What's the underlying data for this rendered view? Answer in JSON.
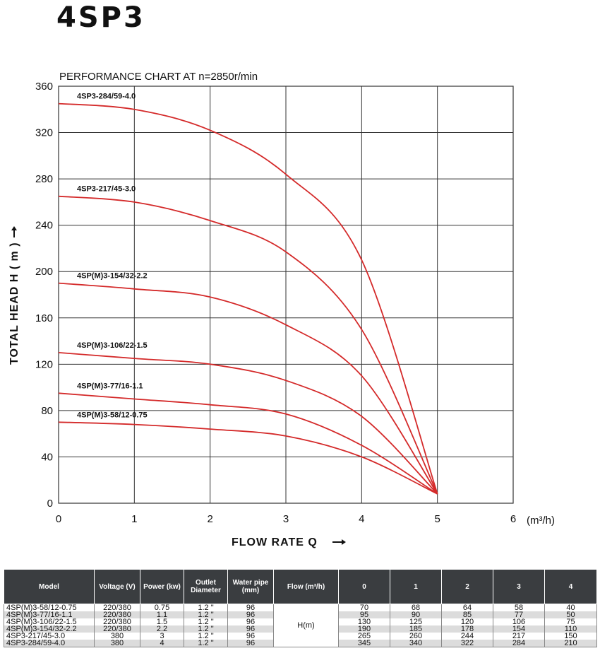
{
  "page_title": "4SP3",
  "chart_data": {
    "type": "line",
    "title": "PERFORMANCE CHART AT  n=2850r/min",
    "xlabel": "FLOW RATE Q",
    "ylabel": "TOTAL HEAD  H ( m )",
    "x_unit": "(m³/h)",
    "xlim": [
      0,
      6
    ],
    "ylim": [
      0,
      360
    ],
    "xticks": [
      0,
      1,
      2,
      3,
      4,
      5,
      6
    ],
    "yticks": [
      0,
      40,
      80,
      120,
      160,
      200,
      240,
      280,
      320,
      360
    ],
    "grid": true,
    "color": "#d42a2a",
    "series": [
      {
        "name": "4SP3-284/59-4.0",
        "x": [
          0,
          1,
          2,
          3,
          4,
          5
        ],
        "y": [
          345,
          340,
          322,
          284,
          210,
          8
        ]
      },
      {
        "name": "4SP3-217/45-3.0",
        "x": [
          0,
          1,
          2,
          3,
          4,
          5
        ],
        "y": [
          265,
          260,
          244,
          217,
          150,
          8
        ]
      },
      {
        "name": "4SP(M)3-154/32-2.2",
        "x": [
          0,
          1,
          2,
          3,
          4,
          5
        ],
        "y": [
          190,
          185,
          178,
          154,
          110,
          8
        ]
      },
      {
        "name": "4SP(M)3-106/22-1.5",
        "x": [
          0,
          1,
          2,
          3,
          4,
          5
        ],
        "y": [
          130,
          125,
          120,
          106,
          75,
          8
        ]
      },
      {
        "name": "4SP(M)3-77/16-1.1",
        "x": [
          0,
          1,
          2,
          3,
          4,
          5
        ],
        "y": [
          95,
          90,
          85,
          77,
          50,
          8
        ]
      },
      {
        "name": "4SP(M)3-58/12-0.75",
        "x": [
          0,
          1,
          2,
          3,
          4,
          5
        ],
        "y": [
          70,
          68,
          64,
          58,
          40,
          8
        ]
      }
    ]
  },
  "table": {
    "headers": {
      "model": "Model",
      "voltage": "Voltage (V)",
      "power": "Power (kw)",
      "outlet": "Outlet Diameter",
      "pipe": "Water pipe (mm)",
      "flow": "Flow (m³/h)",
      "q0": "0",
      "q1": "1",
      "q2": "2",
      "q3": "3",
      "q4": "4"
    },
    "h_label": "H(m)",
    "rows": [
      {
        "model": "4SP(M)3-58/12-0.75",
        "voltage": "220/380",
        "power": "0.75",
        "outlet": "1.2 \"",
        "pipe": "96",
        "h": [
          "70",
          "68",
          "64",
          "58",
          "40"
        ]
      },
      {
        "model": "4SP(M)3-77/16-1.1",
        "voltage": "220/380",
        "power": "1.1",
        "outlet": "1.2 \"",
        "pipe": "96",
        "h": [
          "95",
          "90",
          "85",
          "77",
          "50"
        ]
      },
      {
        "model": "4SP(M)3-106/22-1.5",
        "voltage": "220/380",
        "power": "1.5",
        "outlet": "1.2 \"",
        "pipe": "96",
        "h": [
          "130",
          "125",
          "120",
          "106",
          "75"
        ]
      },
      {
        "model": "4SP(M)3-154/32-2.2",
        "voltage": "220/380",
        "power": "2.2",
        "outlet": "1.2 \"",
        "pipe": "96",
        "h": [
          "190",
          "185",
          "178",
          "154",
          "110"
        ]
      },
      {
        "model": "4SP3-217/45-3.0",
        "voltage": "380",
        "power": "3",
        "outlet": "1.2 \"",
        "pipe": "96",
        "h": [
          "265",
          "260",
          "244",
          "217",
          "150"
        ]
      },
      {
        "model": "4SP3-284/59-4.0",
        "voltage": "380",
        "power": "4",
        "outlet": "1.2 \"",
        "pipe": "96",
        "h": [
          "345",
          "340",
          "322",
          "284",
          "210"
        ]
      }
    ]
  }
}
